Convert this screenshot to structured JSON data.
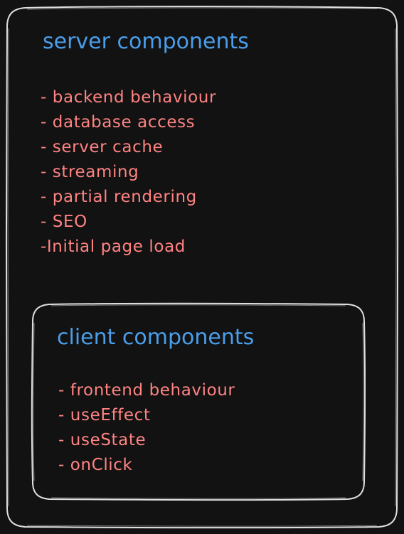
{
  "colors": {
    "background": "#121212",
    "stroke": "#e0e0e0",
    "heading": "#4a9eea",
    "item": "#ff8383"
  },
  "server": {
    "title": "server components",
    "items": [
      "- backend behaviour",
      "- database access",
      "- server cache",
      "- streaming",
      "- partial rendering",
      "- SEO",
      "-Initial page load"
    ]
  },
  "client": {
    "title": "client components",
    "items": [
      "- frontend behaviour",
      "- useEffect",
      "- useState",
      "- onClick"
    ]
  }
}
